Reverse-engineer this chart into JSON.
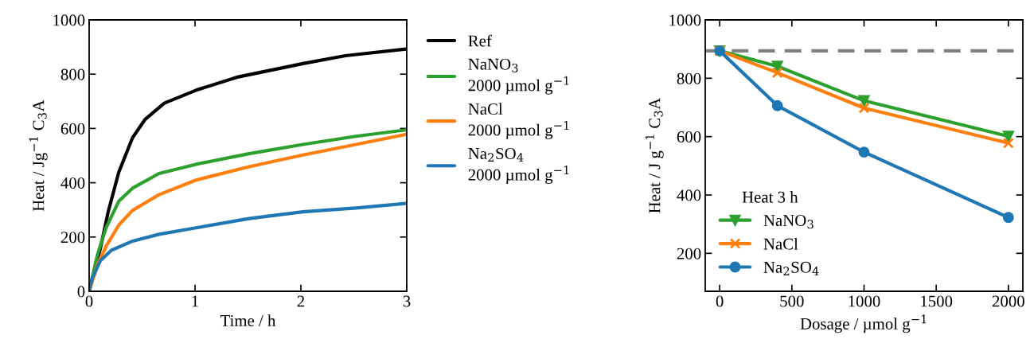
{
  "chart_data": [
    {
      "type": "line",
      "xlabel": "Time / h",
      "ylabel": "Heat / Jg$^{−1}$ C$_{3}$A",
      "xlim": [
        0,
        3
      ],
      "xticks": [
        0,
        1,
        2,
        3
      ],
      "ylim": [
        0,
        1000
      ],
      "yticks": [
        0,
        200,
        400,
        600,
        800,
        1000
      ],
      "grid": false,
      "legend": "right",
      "marker": "none",
      "line_style": "solid",
      "series": [
        {
          "name": "Ref",
          "color": "#000000",
          "x": [
            0,
            0.105,
            0.18,
            0.28,
            0.41,
            0.53,
            0.71,
            1.01,
            1.41,
            2.02,
            2.42,
            3.0
          ],
          "values": [
            0,
            156,
            293,
            439,
            566,
            634,
            693,
            741,
            790,
            839,
            868,
            893
          ]
        },
        {
          "name": "NaNO$_{3}$\n2000 µmol g$^{−1}$",
          "color": "#2ca02c",
          "x": [
            0,
            0.08,
            0.16,
            0.28,
            0.41,
            0.66,
            1.01,
            1.51,
            2.02,
            2.52,
            3.0
          ],
          "values": [
            0,
            137,
            234,
            332,
            380,
            434,
            468,
            507,
            541,
            571,
            595
          ]
        },
        {
          "name": "NaCl\n2000 µmol g$^{−1}$",
          "color": "#ff7f0e",
          "x": [
            0,
            0.08,
            0.16,
            0.28,
            0.41,
            0.66,
            1.01,
            1.51,
            2.02,
            2.52,
            3.0
          ],
          "values": [
            0,
            98,
            166,
            244,
            298,
            356,
            410,
            459,
            502,
            541,
            579
          ]
        },
        {
          "name": "Na$_{2}$SO$_{4}$\n2000 µmol g$^{−1}$",
          "color": "#1f77b4",
          "x": [
            0,
            0.03,
            0.105,
            0.21,
            0.41,
            0.66,
            1.01,
            1.51,
            2.02,
            2.52,
            3.0
          ],
          "values": [
            0,
            49,
            112,
            151,
            185,
            210,
            234,
            268,
            293,
            307,
            324
          ]
        }
      ]
    },
    {
      "type": "line",
      "xlabel": "Dosage / µmol g$^{−1}$",
      "ylabel": "Heat / J g$^{−1}$ C$_{3}$A",
      "xlim": [
        -100,
        2100
      ],
      "xticks": [
        0,
        500,
        1000,
        1500,
        2000
      ],
      "ylim": [
        70,
        1000
      ],
      "yticks": [
        200,
        400,
        600,
        800,
        1000
      ],
      "grid": false,
      "legend": "lower left",
      "legend_title": "Heat 3 h",
      "x": [
        0,
        400,
        1000,
        2000
      ],
      "line_style": "solid",
      "ref_lines": [
        {
          "axis": "y",
          "value": 894,
          "color": "#808080",
          "line_style": "dashed"
        }
      ],
      "series": [
        {
          "name": "NaNO$_{3}$",
          "color": "#2ca02c",
          "marker": "triangle",
          "values": [
            894,
            841,
            723,
            601
          ]
        },
        {
          "name": "NaCl",
          "color": "#ff7f0e",
          "marker": "cross",
          "values": [
            894,
            819,
            698,
            578
          ]
        },
        {
          "name": "Na$_{2}$SO$_{4}$",
          "color": "#1f77b4",
          "marker": "circle",
          "values": [
            894,
            706,
            547,
            323
          ]
        }
      ]
    }
  ]
}
